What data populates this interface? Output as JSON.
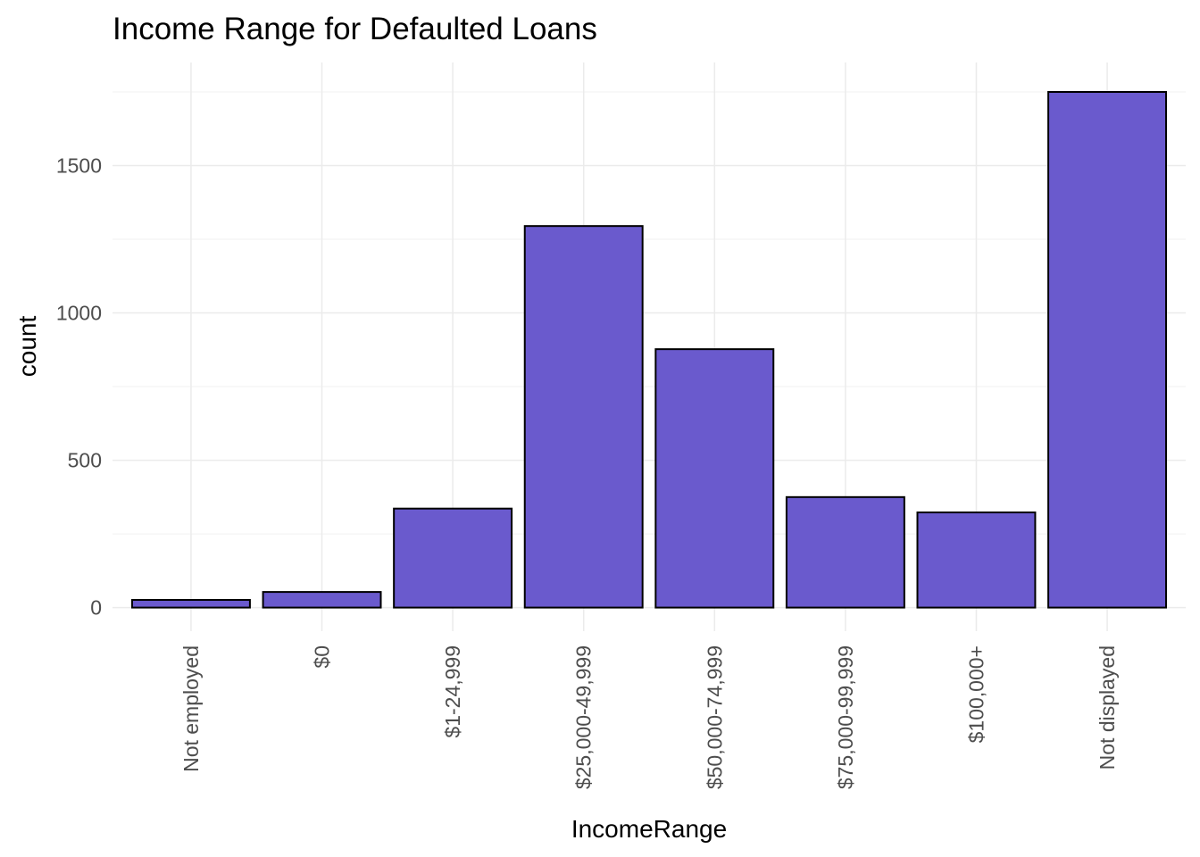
{
  "chart_data": {
    "type": "bar",
    "title": "Income Range for Defaulted Loans",
    "xlabel": "IncomeRange",
    "ylabel": "count",
    "categories": [
      "Not employed",
      "$0",
      "$1-24,999",
      "$25,000-49,999",
      "$50,000-74,999",
      "$75,000-99,999",
      "$100,000+",
      "Not displayed"
    ],
    "values": [
      26,
      53,
      336,
      1295,
      877,
      375,
      323,
      1750
    ],
    "ylim": [
      -80,
      1850
    ],
    "yticks": [
      0,
      500,
      1000,
      1500
    ],
    "ytick_labels": [
      "0",
      "500",
      "1000",
      "1500"
    ],
    "grid": true,
    "bar_color": "#6a5acd",
    "bar_border_color": "#000000"
  }
}
